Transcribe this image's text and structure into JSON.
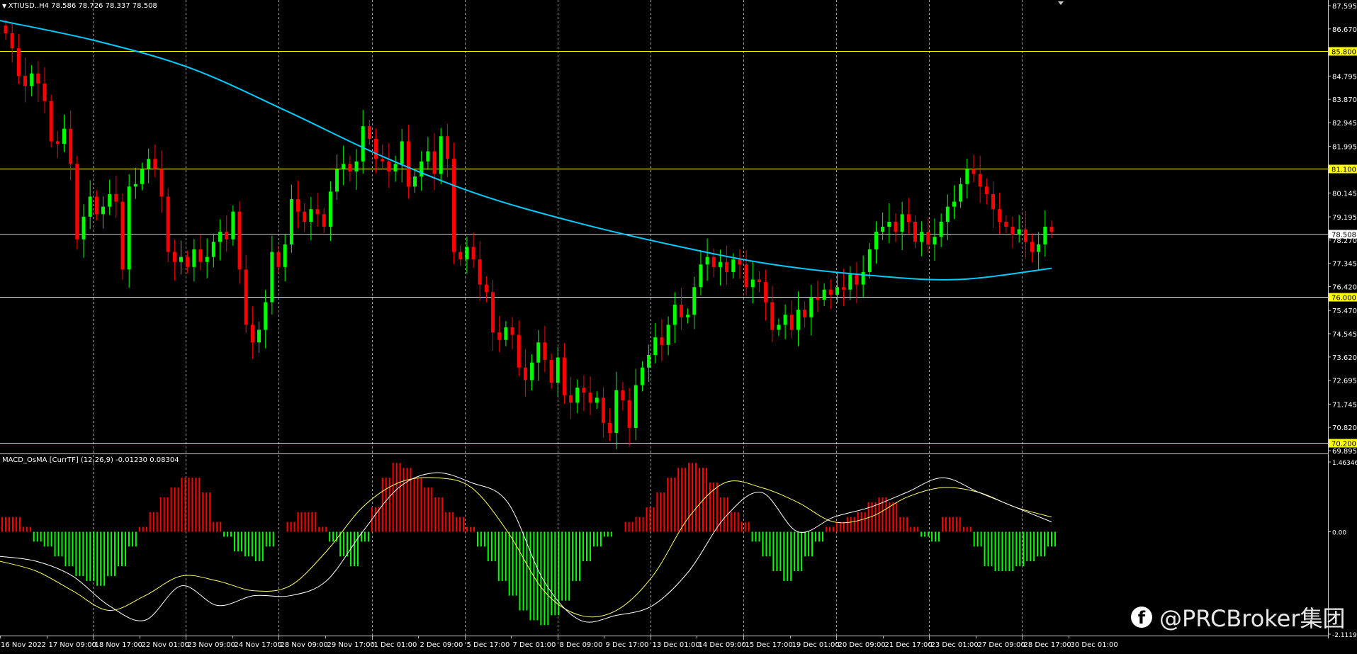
{
  "symbol_info": {
    "symbol": "XTIUSD..H4",
    "open": "78.586",
    "high": "78.726",
    "low": "78.337",
    "close": "78.508"
  },
  "indicator_info": {
    "label": "MACD_OsMA [CurrTF] (12,26,9) -0.01230 0.08304"
  },
  "watermark": {
    "icon": "facebook-icon",
    "text": "@PRCBroker集团"
  },
  "colors": {
    "background": "#000000",
    "bull_candle": "#00ff00",
    "bear_candle": "#ff0000",
    "moving_average": "#00ccff",
    "level_line": "#ffff00",
    "current_price_line": "#c0c0c0",
    "macd_line": "#ffffff",
    "signal_line": "#ffff66"
  },
  "chart_data": {
    "type": "candlestick",
    "price_axis": {
      "range": [
        69.895,
        87.595
      ],
      "ticks": [
        "87.595",
        "86.670",
        "85.745",
        "84.795",
        "83.870",
        "82.945",
        "81.995",
        "81.070",
        "80.145",
        "79.195",
        "78.270",
        "77.345",
        "76.420",
        "75.470",
        "74.545",
        "73.620",
        "72.695",
        "71.745",
        "70.820",
        "69.895"
      ]
    },
    "level_lines": [
      "85.800",
      "81.100",
      "76.000",
      "70.200"
    ],
    "current_price": "78.508",
    "time_axis": [
      "16 Nov 2022",
      "17 Nov 09:00",
      "18 Nov 17:00",
      "22 Nov 01:00",
      "23 Nov 09:00",
      "24 Nov 17:00",
      "28 Nov 09:00",
      "29 Nov 17:00",
      "1 Dec 01:00",
      "2 Dec 09:00",
      "5 Dec 17:00",
      "7 Dec 01:00",
      "8 Dec 09:00",
      "9 Dec 17:00",
      "13 Dec 01:00",
      "14 Dec 09:00",
      "15 Dec 17:00",
      "19 Dec 01:00",
      "20 Dec 09:00",
      "21 Dec 17:00",
      "23 Dec 01:00",
      "27 Dec 09:00",
      "28 Dec 17:00",
      "30 Dec 01:00"
    ],
    "closes": [
      86.5,
      85.9,
      84.8,
      84.4,
      84.9,
      84.5,
      83.8,
      82.2,
      82.1,
      82.7,
      81.3,
      78.3,
      79.2,
      80.0,
      79.3,
      79.6,
      80.1,
      79.8,
      77.1,
      80.4,
      80.5,
      81.1,
      81.5,
      81.1,
      80.0,
      77.8,
      77.4,
      77.6,
      77.2,
      77.9,
      77.4,
      77.6,
      78.2,
      78.6,
      78.3,
      79.4,
      77.1,
      74.9,
      74.2,
      74.7,
      75.8,
      77.8,
      77.2,
      78.1,
      79.9,
      79.4,
      79.0,
      79.5,
      79.3,
      78.8,
      80.2,
      81.1,
      81.3,
      81.0,
      81.4,
      82.8,
      82.3,
      81.5,
      81.4,
      81.0,
      81.3,
      82.2,
      80.4,
      80.8,
      81.4,
      81.8,
      80.9,
      82.4,
      81.5,
      77.8,
      77.5,
      78.0,
      77.5,
      76.5,
      76.2,
      74.6,
      74.3,
      74.8,
      74.5,
      73.2,
      72.7,
      73.4,
      74.2,
      73.5,
      72.6,
      73.6,
      72.1,
      71.8,
      72.4,
      72.2,
      71.8,
      72.0,
      71.0,
      70.6,
      72.3,
      71.9,
      70.8,
      72.5,
      73.2,
      73.7,
      74.4,
      74.1,
      74.9,
      75.7,
      75.2,
      75.3,
      76.4,
      77.3,
      77.6,
      77.2,
      77.4,
      77.0,
      77.5,
      77.3,
      76.4,
      76.7,
      76.6,
      75.8,
      74.7,
      74.9,
      75.3,
      74.7,
      75.5,
      75.2,
      76.0,
      75.9,
      76.3,
      76.1,
      76.4,
      76.3,
      76.9,
      76.5,
      77.0,
      77.9,
      78.6,
      78.8,
      79.0,
      78.6,
      79.3,
      79.0,
      78.2,
      78.6,
      78.1,
      78.4,
      79.0,
      79.6,
      79.8,
      80.5,
      81.1,
      80.9,
      80.4,
      80.1,
      79.5,
      79.0,
      78.8,
      78.5,
      78.7,
      78.2,
      77.8,
      78.1,
      78.8,
      78.6
    ],
    "moving_average": [
      87.0,
      86.2,
      85.1,
      83.4,
      81.6,
      80.1,
      79.0,
      78.1,
      77.35,
      76.9,
      76.7,
      77.15
    ],
    "oscillator_range": [
      -2.11198,
      1.46346
    ],
    "oscillator_ticks": [
      "1.46346",
      "0.00",
      "-2.11198"
    ],
    "histogram": [
      0.3,
      0.3,
      0.1,
      -0.2,
      -0.3,
      -0.5,
      -0.7,
      -0.9,
      -1.0,
      -1.1,
      -0.9,
      -0.7,
      -0.3,
      0.1,
      0.4,
      0.7,
      0.9,
      1.1,
      1.1,
      0.8,
      0.2,
      -0.1,
      -0.4,
      -0.5,
      -0.6,
      -0.3,
      0.0,
      0.2,
      0.4,
      0.4,
      0.1,
      -0.2,
      -0.5,
      -0.7,
      -0.2,
      0.5,
      1.1,
      1.4,
      1.3,
      1.1,
      0.9,
      0.7,
      0.4,
      0.3,
      0.1,
      -0.3,
      -0.6,
      -1.0,
      -1.3,
      -1.6,
      -1.8,
      -1.9,
      -1.7,
      -1.4,
      -1.0,
      -0.6,
      -0.3,
      -0.1,
      0.0,
      0.2,
      0.3,
      0.5,
      0.8,
      1.1,
      1.3,
      1.4,
      1.3,
      1.0,
      0.7,
      0.4,
      0.2,
      -0.2,
      -0.5,
      -0.8,
      -1.0,
      -0.8,
      -0.5,
      -0.2,
      0.1,
      0.2,
      0.3,
      0.4,
      0.6,
      0.7,
      0.6,
      0.3,
      0.1,
      -0.1,
      -0.2,
      0.3,
      0.3,
      0.1,
      -0.3,
      -0.7,
      -0.8,
      -0.8,
      -0.7,
      -0.6,
      -0.5,
      -0.3
    ],
    "macd_line": [
      -0.5,
      -0.6,
      -0.9,
      -1.5,
      -1.8,
      -1.1,
      -1.5,
      -1.3,
      -1.3,
      -1.0,
      0.0,
      0.9,
      1.2,
      1.0,
      0.6,
      -1.0,
      -1.8,
      -1.7,
      -1.5,
      -0.8,
      0.3,
      0.8,
      0.0,
      0.3,
      0.5,
      0.8,
      1.1,
      0.8,
      0.5,
      0.2
    ],
    "signal_line": [
      -0.6,
      -0.8,
      -1.2,
      -1.6,
      -1.3,
      -0.9,
      -1.0,
      -1.2,
      -1.1,
      -0.4,
      0.5,
      1.0,
      1.1,
      0.9,
      0.0,
      -1.2,
      -1.7,
      -1.6,
      -0.9,
      0.3,
      1.0,
      0.9,
      0.6,
      0.2,
      0.3,
      0.7,
      0.9,
      0.8,
      0.5,
      0.3
    ]
  }
}
